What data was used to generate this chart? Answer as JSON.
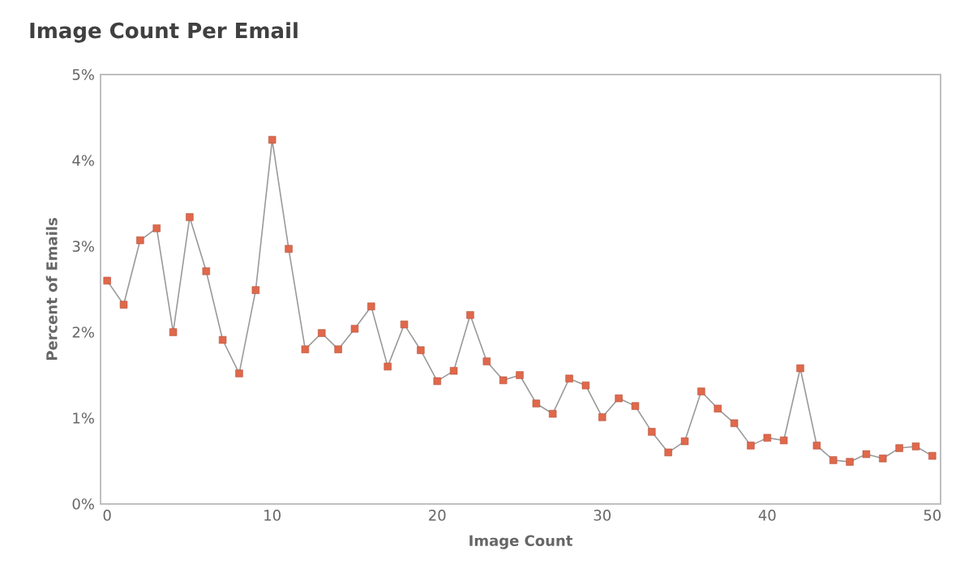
{
  "chart_data": {
    "type": "line",
    "title": "Image Count Per Email",
    "xlabel": "Image Count",
    "ylabel": "Percent of Emails",
    "x": [
      0,
      1,
      2,
      3,
      4,
      5,
      6,
      7,
      8,
      9,
      10,
      11,
      12,
      13,
      14,
      15,
      16,
      17,
      18,
      19,
      20,
      21,
      22,
      23,
      24,
      25,
      26,
      27,
      28,
      29,
      30,
      31,
      32,
      33,
      34,
      35,
      36,
      37,
      38,
      39,
      40,
      41,
      42,
      43,
      44,
      45,
      46,
      47,
      48,
      49,
      50
    ],
    "series": [
      {
        "color": "#e0684b",
        "values": [
          2.6,
          2.32,
          3.07,
          3.21,
          2.0,
          3.34,
          2.71,
          1.91,
          1.52,
          2.49,
          4.24,
          2.97,
          1.8,
          1.99,
          1.8,
          2.04,
          2.3,
          1.6,
          2.09,
          1.79,
          1.43,
          1.55,
          2.2,
          1.66,
          1.44,
          1.5,
          1.17,
          1.05,
          1.46,
          1.38,
          1.01,
          1.23,
          1.14,
          0.84,
          0.6,
          0.73,
          1.31,
          1.11,
          0.94,
          0.68,
          0.77,
          0.74,
          1.58,
          0.68,
          0.51,
          0.49,
          0.58,
          0.53,
          0.65,
          0.67,
          0.56
        ]
      }
    ],
    "xlim": [
      -0.4,
      50.5
    ],
    "ylim": [
      0,
      5
    ],
    "xticks": [
      0,
      10,
      20,
      30,
      40,
      50
    ],
    "yticks": [
      {
        "value": 0,
        "label": "0%"
      },
      {
        "value": 1,
        "label": "1%"
      },
      {
        "value": 2,
        "label": "2%"
      },
      {
        "value": 3,
        "label": "3%"
      },
      {
        "value": 4,
        "label": "4%"
      },
      {
        "value": 5,
        "label": "5%"
      }
    ],
    "marker": "square",
    "line_style": "solid",
    "grid": false,
    "legend": false
  }
}
